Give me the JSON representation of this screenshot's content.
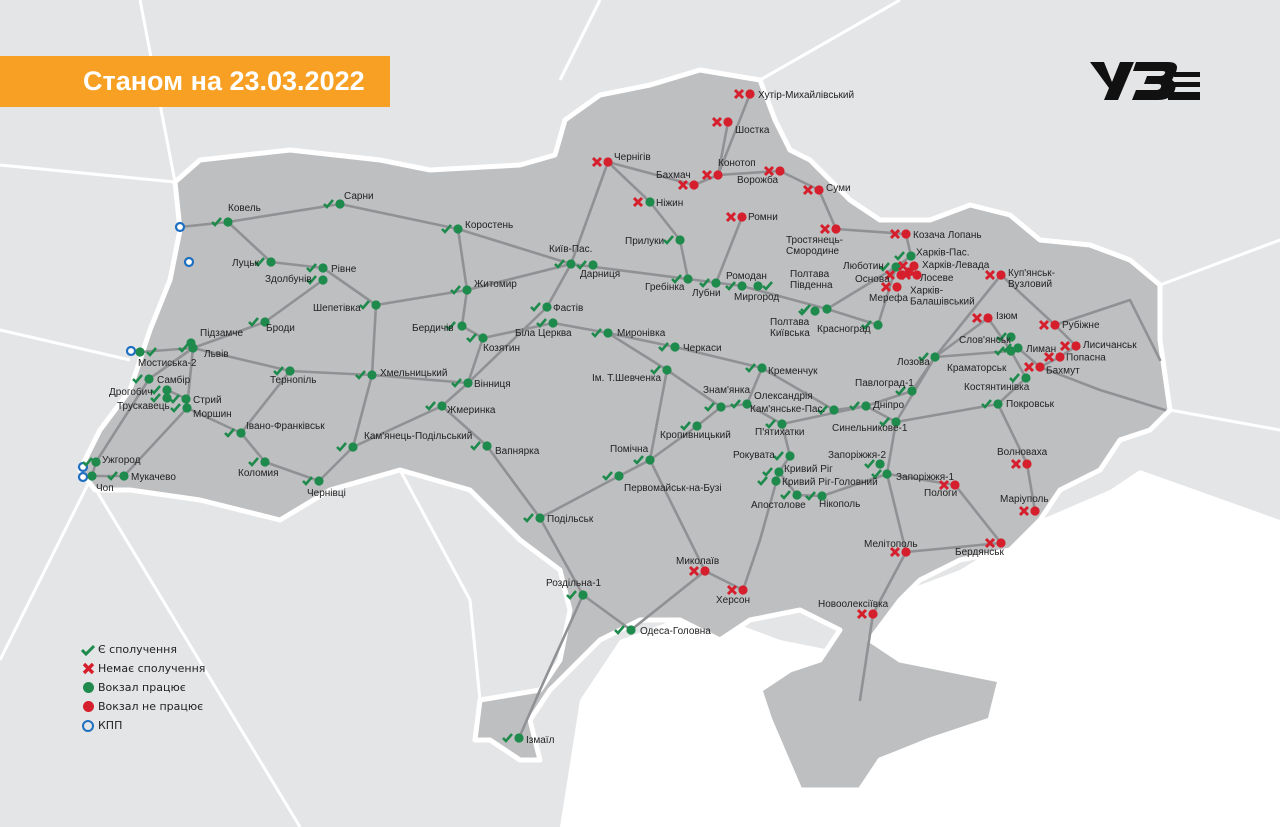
{
  "header": {
    "title": "Станом на 23.03.2022",
    "logo_text": "УЗ"
  },
  "colors": {
    "banner": "#f7a024",
    "ok": "#1e8a4c",
    "closed": "#d61f2c",
    "checkpoint": "#1f6fc0",
    "land": "#bdbec0",
    "rail": "#8f9093",
    "sea": "#ffffff"
  },
  "legend": [
    {
      "icon": "check-icon",
      "label": "Є сполучення"
    },
    {
      "icon": "cross-icon",
      "label": "Немає сполучення"
    },
    {
      "icon": "green-dot-icon",
      "label": "Вокзал працює"
    },
    {
      "icon": "red-dot-icon",
      "label": "Вокзал не працює"
    },
    {
      "icon": "ring-icon",
      "label": "КПП"
    }
  ],
  "stations": [
    {
      "name": "Хутір-Михайлівський",
      "connection": false,
      "station_open": false
    },
    {
      "name": "Шостка",
      "connection": false,
      "station_open": false
    },
    {
      "name": "Чернігів",
      "connection": false,
      "station_open": false
    },
    {
      "name": "Конотоп",
      "connection": false,
      "station_open": false
    },
    {
      "name": "Бахмач",
      "connection": false,
      "station_open": false
    },
    {
      "name": "Ворожба",
      "connection": false,
      "station_open": false
    },
    {
      "name": "Суми",
      "connection": false,
      "station_open": false
    },
    {
      "name": "Ромни",
      "connection": false,
      "station_open": false
    },
    {
      "name": "Ніжин",
      "connection": false,
      "station_open": true
    },
    {
      "name": "Тростянець-\nСмородине",
      "connection": false,
      "station_open": false
    },
    {
      "name": "Козача Лопань",
      "connection": false,
      "station_open": false
    },
    {
      "name": "Прилуки",
      "connection": true,
      "station_open": true
    },
    {
      "name": "Коростень",
      "connection": true,
      "station_open": true
    },
    {
      "name": "Сарни",
      "connection": true,
      "station_open": true
    },
    {
      "name": "Ковель",
      "connection": true,
      "station_open": true
    },
    {
      "name": "Луцьк",
      "connection": true,
      "station_open": true
    },
    {
      "name": "Рівне",
      "connection": true,
      "station_open": true
    },
    {
      "name": "Здолбунів",
      "connection": true,
      "station_open": true
    },
    {
      "name": "Шепетівка",
      "connection": true,
      "station_open": true
    },
    {
      "name": "Житомир",
      "connection": true,
      "station_open": true
    },
    {
      "name": "Київ-Пас.",
      "connection": true,
      "station_open": true
    },
    {
      "name": "Дарниця",
      "connection": true,
      "station_open": true
    },
    {
      "name": "Фастів",
      "connection": true,
      "station_open": true
    },
    {
      "name": "Бердичів",
      "connection": true,
      "station_open": true
    },
    {
      "name": "Козятин",
      "connection": true,
      "station_open": true
    },
    {
      "name": "Біла Церква",
      "connection": true,
      "station_open": true
    },
    {
      "name": "Миронівка",
      "connection": true,
      "station_open": true
    },
    {
      "name": "Гребінка",
      "connection": true,
      "station_open": true
    },
    {
      "name": "Лубни",
      "connection": true,
      "station_open": true
    },
    {
      "name": "Ромодан",
      "connection": true,
      "station_open": true
    },
    {
      "name": "Миргород",
      "connection": true,
      "station_open": true
    },
    {
      "name": "Полтава\nПівденна",
      "connection": true,
      "station_open": true
    },
    {
      "name": "Полтава\nКиївська",
      "connection": true,
      "station_open": true
    },
    {
      "name": "Красноград",
      "connection": true,
      "station_open": true
    },
    {
      "name": "Люботин",
      "connection": true,
      "station_open": true
    },
    {
      "name": "Основа",
      "connection": false,
      "station_open": false
    },
    {
      "name": "Харків-Пас.",
      "connection": true,
      "station_open": true
    },
    {
      "name": "Харків-Левада",
      "connection": false,
      "station_open": false
    },
    {
      "name": "Лосеве",
      "connection": false,
      "station_open": false
    },
    {
      "name": "Харків-\nБалашівський",
      "connection": false,
      "station_open": false
    },
    {
      "name": "Мерефа",
      "connection": false,
      "station_open": false
    },
    {
      "name": "Куп'янськ-\nВузловий",
      "connection": false,
      "station_open": false
    },
    {
      "name": "Ізюм",
      "connection": false,
      "station_open": false
    },
    {
      "name": "Рубіжне",
      "connection": false,
      "station_open": false
    },
    {
      "name": "Лисичанськ",
      "connection": false,
      "station_open": false
    },
    {
      "name": "Попасна",
      "connection": false,
      "station_open": false
    },
    {
      "name": "Бахмут",
      "connection": false,
      "station_open": false
    },
    {
      "name": "Слов'янськ",
      "connection": true,
      "station_open": true
    },
    {
      "name": "Лиман",
      "connection": true,
      "station_open": true
    },
    {
      "name": "Краматорськ",
      "connection": true,
      "station_open": true
    },
    {
      "name": "Костянтинівка",
      "connection": true,
      "station_open": true
    },
    {
      "name": "Покровськ",
      "connection": true,
      "station_open": true
    },
    {
      "name": "Лозова",
      "connection": true,
      "station_open": true
    },
    {
      "name": "Павлоград-1",
      "connection": true,
      "station_open": true
    },
    {
      "name": "Дніпро",
      "connection": true,
      "station_open": true
    },
    {
      "name": "Синельникове-1",
      "connection": true,
      "station_open": true
    },
    {
      "name": "Запоріжжя-2",
      "connection": true,
      "station_open": true
    },
    {
      "name": "Запоріжжя-1",
      "connection": true,
      "station_open": true
    },
    {
      "name": "Пологи",
      "connection": false,
      "station_open": false
    },
    {
      "name": "Волноваха",
      "connection": false,
      "station_open": false
    },
    {
      "name": "Маріуполь",
      "connection": false,
      "station_open": false
    },
    {
      "name": "Бердянськ",
      "connection": false,
      "station_open": false
    },
    {
      "name": "Мелітополь",
      "connection": false,
      "station_open": false
    },
    {
      "name": "Новоолексіївка",
      "connection": false,
      "station_open": false
    },
    {
      "name": "Нікополь",
      "connection": true,
      "station_open": true
    },
    {
      "name": "Апостолове",
      "connection": true,
      "station_open": true
    },
    {
      "name": "Кривий Ріг",
      "connection": true,
      "station_open": true
    },
    {
      "name": "Кривий Ріг-Головний",
      "connection": true,
      "station_open": true
    },
    {
      "name": "Рокувата",
      "connection": true,
      "station_open": true
    },
    {
      "name": "П'ятихатки",
      "connection": true,
      "station_open": true
    },
    {
      "name": "Кам'янське-Пас.",
      "connection": true,
      "station_open": true
    },
    {
      "name": "Олександрія",
      "connection": true,
      "station_open": true
    },
    {
      "name": "Знам'янка",
      "connection": true,
      "station_open": true
    },
    {
      "name": "Кременчук",
      "connection": true,
      "station_open": true
    },
    {
      "name": "Черкаси",
      "connection": true,
      "station_open": true
    },
    {
      "name": "Ім. Т.Шевченка",
      "connection": true,
      "station_open": true
    },
    {
      "name": "Кропивницький",
      "connection": true,
      "station_open": true
    },
    {
      "name": "Помічна",
      "connection": true,
      "station_open": true
    },
    {
      "name": "Первомайськ-на-Бузі",
      "connection": true,
      "station_open": true
    },
    {
      "name": "Вапнярка",
      "connection": true,
      "station_open": true
    },
    {
      "name": "Жмеринка",
      "connection": true,
      "station_open": true
    },
    {
      "name": "Вінниця",
      "connection": true,
      "station_open": true
    },
    {
      "name": "Хмельницький",
      "connection": true,
      "station_open": true
    },
    {
      "name": "Кам'янець-Подільський",
      "connection": true,
      "station_open": true
    },
    {
      "name": "Тернопіль",
      "connection": true,
      "station_open": true
    },
    {
      "name": "Броди",
      "connection": true,
      "station_open": true
    },
    {
      "name": "Підзамче",
      "connection": true,
      "station_open": true
    },
    {
      "name": "Львів",
      "connection": true,
      "station_open": true
    },
    {
      "name": "Мостиська-2",
      "connection": true,
      "station_open": true
    },
    {
      "name": "Самбір",
      "connection": true,
      "station_open": true
    },
    {
      "name": "Дрогобич",
      "connection": true,
      "station_open": true
    },
    {
      "name": "Трускавець",
      "connection": true,
      "station_open": true
    },
    {
      "name": "Стрий",
      "connection": true,
      "station_open": true
    },
    {
      "name": "Моршин",
      "connection": true,
      "station_open": true
    },
    {
      "name": "Івано-Франківськ",
      "connection": true,
      "station_open": true
    },
    {
      "name": "Коломия",
      "connection": true,
      "station_open": true
    },
    {
      "name": "Чернівці",
      "connection": true,
      "station_open": true
    },
    {
      "name": "Ужгород",
      "connection": true,
      "station_open": true
    },
    {
      "name": "Чоп",
      "connection": true,
      "station_open": true
    },
    {
      "name": "Мукачево",
      "connection": true,
      "station_open": true
    },
    {
      "name": "Подільськ",
      "connection": true,
      "station_open": true
    },
    {
      "name": "Роздільна-1",
      "connection": true,
      "station_open": true
    },
    {
      "name": "Одеса-Головна",
      "connection": true,
      "station_open": true
    },
    {
      "name": "Ізмаїл",
      "connection": true,
      "station_open": true
    },
    {
      "name": "Миколаїв",
      "connection": false,
      "station_open": false
    },
    {
      "name": "Херсон",
      "connection": false,
      "station_open": false
    }
  ]
}
